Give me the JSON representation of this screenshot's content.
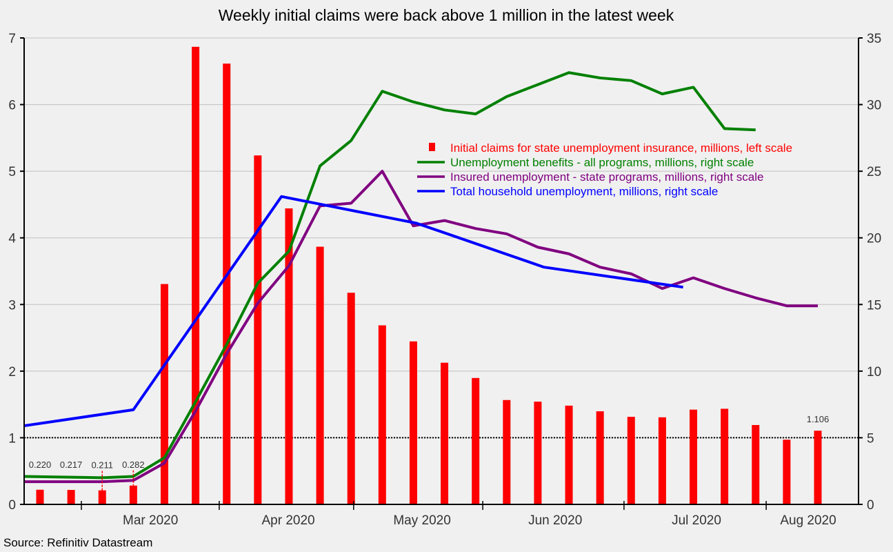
{
  "chart_data": {
    "type": "bar+line",
    "title": "Weekly initial claims were back above 1 million in the latest week",
    "source": "Source: Refinitiv Datastream",
    "x_unit": "week index (0 = first bar, weekly spacing)",
    "left_axis": {
      "ylim": [
        0,
        7
      ],
      "ticks": [
        "0",
        "1",
        "2",
        "3",
        "4",
        "5",
        "6",
        "7"
      ]
    },
    "right_axis": {
      "ylim": [
        0,
        35
      ],
      "ticks": [
        "0",
        "5",
        "10",
        "15",
        "20",
        "25",
        "30",
        "35"
      ]
    },
    "month_labels": [
      {
        "label": "Mar 2020",
        "pos": 3.55
      },
      {
        "label": "Apr 2020",
        "pos": 7.98
      },
      {
        "label": "May 2020",
        "pos": 12.28
      },
      {
        "label": "Jun 2020",
        "pos": 16.56
      },
      {
        "label": "Jul 2020",
        "pos": 21.1
      },
      {
        "label": "Aug 2020",
        "pos": 24.69
      }
    ],
    "month_separators": [
      1.33,
      5.76,
      10.08,
      14.23,
      18.77,
      23.34
    ],
    "reference_line": {
      "value": 1,
      "axis": "left",
      "style": "dotted"
    },
    "grid": true,
    "legend_position": "upper-right",
    "series": [
      {
        "name": "Initial claims for state unemployment insurance,  millions, left scale",
        "kind": "bar",
        "axis": "left",
        "color": "#ff0000",
        "values": [
          0.22,
          0.217,
          0.211,
          0.282,
          3.307,
          6.867,
          6.615,
          5.237,
          4.442,
          3.867,
          3.176,
          2.687,
          2.446,
          2.126,
          1.897,
          1.566,
          1.542,
          1.482,
          1.397,
          1.314,
          1.307,
          1.422,
          1.435,
          1.191,
          0.971,
          1.106
        ]
      },
      {
        "name": "Unemployment benefits - all programs, millions, right scale",
        "kind": "line",
        "axis": "right",
        "color": "#008000",
        "points": [
          [
            -0.51,
            2.1
          ],
          [
            2,
            2.0
          ],
          [
            3,
            2.1
          ],
          [
            4,
            3.5
          ],
          [
            5,
            7.7
          ],
          [
            6,
            12.0
          ],
          [
            7,
            16.6
          ],
          [
            8,
            19.0
          ],
          [
            9,
            25.4
          ],
          [
            10,
            27.3
          ],
          [
            11,
            31.0
          ],
          [
            12,
            30.2
          ],
          [
            13,
            29.6
          ],
          [
            14,
            29.3
          ],
          [
            15,
            30.6
          ],
          [
            16,
            31.5
          ],
          [
            17,
            32.4
          ],
          [
            18,
            32.0
          ],
          [
            19,
            31.8
          ],
          [
            20,
            30.8
          ],
          [
            21,
            31.3
          ],
          [
            22,
            28.2
          ],
          [
            23,
            28.1
          ]
        ]
      },
      {
        "name": "Insured unemployment - state programs, millions, right scale",
        "kind": "line",
        "axis": "right",
        "color": "#800080",
        "points": [
          [
            -0.51,
            1.7
          ],
          [
            2,
            1.7
          ],
          [
            3,
            1.8
          ],
          [
            4,
            3.1
          ],
          [
            5,
            7.0
          ],
          [
            6,
            11.3
          ],
          [
            7,
            15.1
          ],
          [
            8,
            17.9
          ],
          [
            9,
            22.4
          ],
          [
            10,
            22.6
          ],
          [
            11,
            25.0
          ],
          [
            12,
            20.9
          ],
          [
            13,
            21.3
          ],
          [
            14,
            20.7
          ],
          [
            15,
            20.3
          ],
          [
            16,
            19.3
          ],
          [
            17,
            18.8
          ],
          [
            18,
            17.8
          ],
          [
            19,
            17.3
          ],
          [
            20,
            16.2
          ],
          [
            21,
            17.0
          ],
          [
            22,
            16.2
          ],
          [
            23,
            15.5
          ],
          [
            24,
            14.9
          ],
          [
            25,
            14.9
          ]
        ]
      },
      {
        "name": "Total household unemployment, millions, right scale",
        "kind": "line",
        "axis": "right",
        "color": "#0000ff",
        "points": [
          [
            -0.51,
            5.9
          ],
          [
            3,
            7.1
          ],
          [
            7.76,
            23.1
          ],
          [
            12.1,
            21.1
          ],
          [
            16.2,
            17.8
          ],
          [
            20.67,
            16.3
          ]
        ]
      }
    ],
    "data_labels": [
      {
        "bar": 0,
        "text": "0.220"
      },
      {
        "bar": 1,
        "text": "0.217"
      },
      {
        "bar": 2,
        "text": "0.211"
      },
      {
        "bar": 3,
        "text": "0.282"
      },
      {
        "bar": 25,
        "text": "1.106"
      }
    ]
  }
}
